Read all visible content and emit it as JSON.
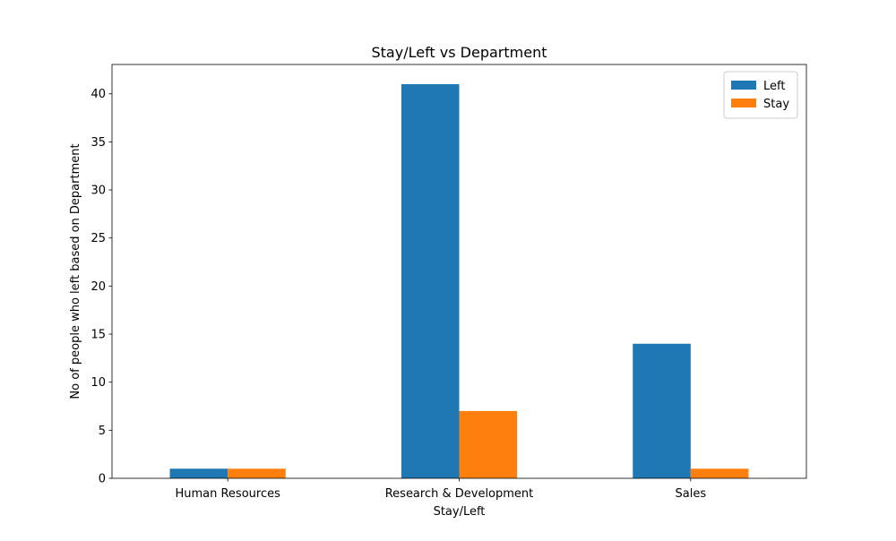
{
  "chart_data": {
    "type": "bar",
    "title": "Stay/Left vs Department",
    "xlabel": "Stay/Left",
    "ylabel": "No of people who left based on Department",
    "categories": [
      "Human Resources",
      "Research & Development",
      "Sales"
    ],
    "series": [
      {
        "name": "Left",
        "values": [
          1,
          41,
          14
        ],
        "color": "#1f77b4"
      },
      {
        "name": "Stay",
        "values": [
          1,
          7,
          1
        ],
        "color": "#ff7f0e"
      }
    ],
    "ylim": [
      0,
      43.05
    ],
    "yticks": [
      0,
      5,
      10,
      15,
      20,
      25,
      30,
      35,
      40
    ],
    "grid": false,
    "legend": "top-right"
  }
}
